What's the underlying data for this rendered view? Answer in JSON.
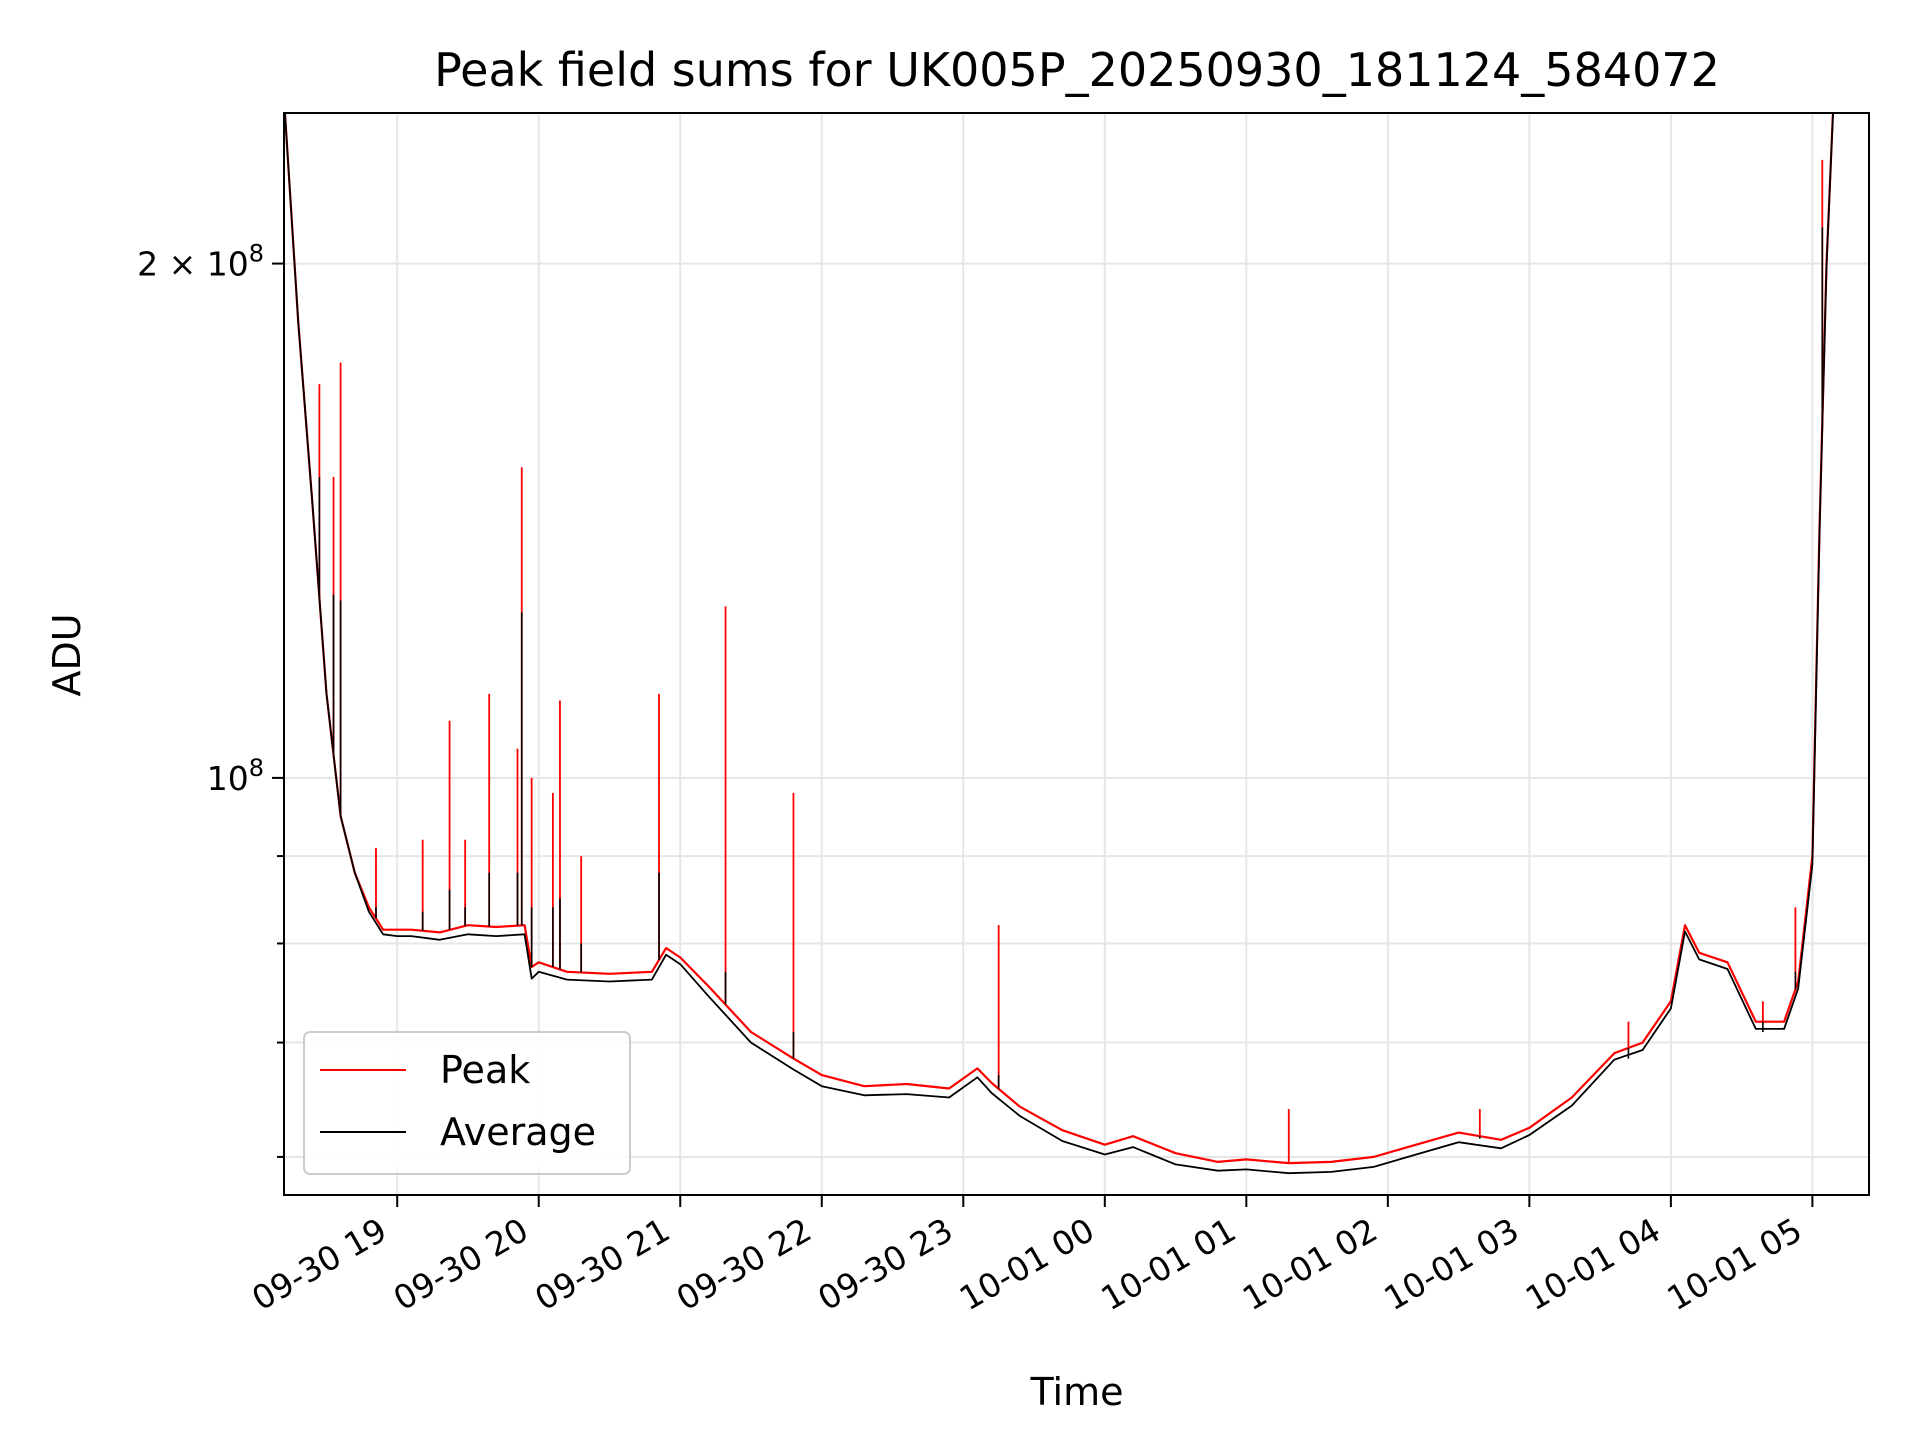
{
  "chart_data": {
    "type": "line",
    "title": "Peak field sums for UK005P_20250930_181124_584072",
    "xlabel": "Time",
    "ylabel": "ADU",
    "yscale": "log",
    "ylim": [
      57000000,
      245000000
    ],
    "xlim": [
      -0.8,
      10.4
    ],
    "grid": true,
    "legend_position": "lower-left",
    "x_unit": "hours since 2025-09-30 19:00",
    "x_ticks": [
      {
        "value": 0,
        "label": "09-30 19"
      },
      {
        "value": 1,
        "label": "09-30 20"
      },
      {
        "value": 2,
        "label": "09-30 21"
      },
      {
        "value": 3,
        "label": "09-30 22"
      },
      {
        "value": 4,
        "label": "09-30 23"
      },
      {
        "value": 5,
        "label": "10-01 00"
      },
      {
        "value": 6,
        "label": "10-01 01"
      },
      {
        "value": 7,
        "label": "10-01 02"
      },
      {
        "value": 8,
        "label": "10-01 03"
      },
      {
        "value": 9,
        "label": "10-01 04"
      },
      {
        "value": 10,
        "label": "10-01 05"
      }
    ],
    "y_major_ticks": [
      {
        "value": 100000000,
        "base": "10",
        "exp": "8",
        "mantissa": ""
      },
      {
        "value": 200000000,
        "base": "10",
        "exp": "8",
        "mantissa": "2 × "
      }
    ],
    "y_minor_ticks": [
      60000000,
      70000000,
      80000000,
      90000000
    ],
    "series": [
      {
        "name": "Peak",
        "color": "#ff0000",
        "x": [
          -0.8,
          -0.7,
          -0.6,
          -0.5,
          -0.4,
          -0.3,
          -0.2,
          -0.1,
          0.0,
          0.1,
          0.3,
          0.5,
          0.7,
          0.9,
          0.95,
          1.0,
          1.2,
          1.5,
          1.8,
          1.9,
          2.0,
          2.2,
          2.5,
          2.8,
          3.0,
          3.3,
          3.6,
          3.9,
          4.1,
          4.2,
          4.4,
          4.7,
          5.0,
          5.2,
          5.5,
          5.8,
          6.0,
          6.3,
          6.6,
          6.9,
          7.2,
          7.5,
          7.8,
          8.0,
          8.3,
          8.6,
          8.8,
          9.0,
          9.1,
          9.2,
          9.4,
          9.6,
          9.8,
          9.9,
          10.0,
          10.05,
          10.1,
          10.15
        ],
        "y": [
          250000000,
          185000000,
          145000000,
          112000000,
          95000000,
          88000000,
          84000000,
          81500000,
          81500000,
          81500000,
          81200000,
          82000000,
          81800000,
          82000000,
          77500000,
          78000000,
          77000000,
          76800000,
          77000000,
          79500000,
          78500000,
          75500000,
          71000000,
          68500000,
          67000000,
          66000000,
          66200000,
          65800000,
          67600000,
          66300000,
          64200000,
          62200000,
          61000000,
          61700000,
          60300000,
          59600000,
          59800000,
          59500000,
          59600000,
          60000000,
          61000000,
          62000000,
          61400000,
          62400000,
          65000000,
          69000000,
          70000000,
          74000000,
          82000000,
          79000000,
          78000000,
          72000000,
          72000000,
          76000000,
          90000000,
          140000000,
          200000000,
          250000000
        ]
      },
      {
        "name": "Average",
        "color": "#000000",
        "x": [
          -0.8,
          -0.7,
          -0.6,
          -0.5,
          -0.4,
          -0.3,
          -0.2,
          -0.1,
          0.0,
          0.1,
          0.3,
          0.5,
          0.7,
          0.9,
          0.95,
          1.0,
          1.2,
          1.5,
          1.8,
          1.9,
          2.0,
          2.2,
          2.5,
          2.8,
          3.0,
          3.3,
          3.6,
          3.9,
          4.1,
          4.2,
          4.4,
          4.7,
          5.0,
          5.2,
          5.5,
          5.8,
          6.0,
          6.3,
          6.6,
          6.9,
          7.2,
          7.5,
          7.8,
          8.0,
          8.3,
          8.6,
          8.8,
          9.0,
          9.1,
          9.2,
          9.4,
          9.6,
          9.8,
          9.9,
          10.0,
          10.05,
          10.1,
          10.15
        ],
        "y": [
          250000000,
          185000000,
          145000000,
          112000000,
          95000000,
          88000000,
          83500000,
          81000000,
          80800000,
          80800000,
          80400000,
          81000000,
          80800000,
          81000000,
          76300000,
          77000000,
          76200000,
          76000000,
          76200000,
          78800000,
          77800000,
          74500000,
          70000000,
          67500000,
          66000000,
          65200000,
          65300000,
          65000000,
          66800000,
          65400000,
          63400000,
          61300000,
          60200000,
          60800000,
          59400000,
          58900000,
          59000000,
          58700000,
          58800000,
          59200000,
          60200000,
          61200000,
          60700000,
          61800000,
          64300000,
          68400000,
          69300000,
          73300000,
          81300000,
          78300000,
          77300000,
          71300000,
          71300000,
          75300000,
          89000000,
          139000000,
          199000000,
          250000000
        ]
      }
    ],
    "spikes": [
      {
        "x": -0.55,
        "peak": 170000000,
        "avg": 150000000
      },
      {
        "x": -0.45,
        "peak": 150000000,
        "avg": 128000000
      },
      {
        "x": -0.4,
        "peak": 175000000,
        "avg": 127000000
      },
      {
        "x": -0.15,
        "peak": 91000000,
        "avg": 84000000
      },
      {
        "x": 0.18,
        "peak": 92000000,
        "avg": 83500000
      },
      {
        "x": 0.37,
        "peak": 108000000,
        "avg": 86000000
      },
      {
        "x": 0.48,
        "peak": 92000000,
        "avg": 84000000
      },
      {
        "x": 0.65,
        "peak": 112000000,
        "avg": 88000000
      },
      {
        "x": 0.85,
        "peak": 104000000,
        "avg": 88000000
      },
      {
        "x": 0.88,
        "peak": 152000000,
        "avg": 125000000
      },
      {
        "x": 0.95,
        "peak": 100000000,
        "avg": 84000000
      },
      {
        "x": 1.1,
        "peak": 98000000,
        "avg": 84000000
      },
      {
        "x": 1.15,
        "peak": 111000000,
        "avg": 85000000
      },
      {
        "x": 1.3,
        "peak": 90000000,
        "avg": 80000000
      },
      {
        "x": 1.85,
        "peak": 112000000,
        "avg": 88000000
      },
      {
        "x": 2.32,
        "peak": 126000000,
        "avg": 77000000
      },
      {
        "x": 2.8,
        "peak": 98000000,
        "avg": 71000000
      },
      {
        "x": 4.25,
        "peak": 82000000,
        "avg": 67000000
      },
      {
        "x": 6.3,
        "peak": 64000000,
        "avg": 59500000
      },
      {
        "x": 7.65,
        "peak": 64000000,
        "avg": 61500000
      },
      {
        "x": 8.7,
        "peak": 72000000,
        "avg": 68500000
      },
      {
        "x": 9.65,
        "peak": 74000000,
        "avg": 71000000
      },
      {
        "x": 9.88,
        "peak": 84000000,
        "avg": 77000000
      },
      {
        "x": 10.07,
        "peak": 230000000,
        "avg": 210000000
      }
    ]
  }
}
